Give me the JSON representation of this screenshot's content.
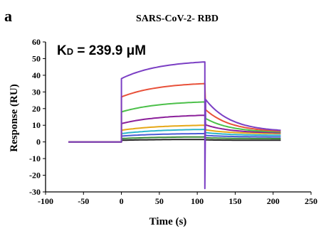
{
  "chart_data": {
    "type": "line",
    "panel_label": "a",
    "title": "SARS-CoV-2- RBD",
    "annotation": {
      "prefix": "K",
      "subscript": "D",
      "text": " =  239.9 μM"
    },
    "xlabel": "Time (s)",
    "ylabel": "Response (RU)",
    "xlim": [
      -100,
      250
    ],
    "ylim": [
      -30,
      60
    ],
    "x_ticks": [
      -100,
      -50,
      0,
      50,
      100,
      150,
      200,
      250
    ],
    "y_ticks": [
      -30,
      -20,
      -10,
      0,
      10,
      20,
      30,
      40,
      50,
      60
    ],
    "grid": false,
    "legend": "none",
    "baseline_start": -70,
    "injection_start": 0,
    "injection_end": 110,
    "run_end": 210,
    "injection_spike": -28,
    "series": [
      {
        "color": "#7B3FC4",
        "jump": 38,
        "end_association": 48,
        "end_dissociation": 7
      },
      {
        "color": "#E8513A",
        "jump": 27,
        "end_association": 35,
        "end_dissociation": 6.5
      },
      {
        "color": "#4CC04A",
        "jump": 18,
        "end_association": 24,
        "end_dissociation": 6
      },
      {
        "color": "#8B1F9A",
        "jump": 11,
        "end_association": 16,
        "end_dissociation": 5.5
      },
      {
        "color": "#E6A817",
        "jump": 7,
        "end_association": 10,
        "end_dissociation": 5
      },
      {
        "color": "#2BB5C9",
        "jump": 5,
        "end_association": 7.5,
        "end_dissociation": 4
      },
      {
        "color": "#4A5BD6",
        "jump": 3.5,
        "end_association": 5,
        "end_dissociation": 3
      },
      {
        "color": "#3A8A3A",
        "jump": 2,
        "end_association": 3,
        "end_dissociation": 2
      },
      {
        "color": "#222222",
        "jump": 1,
        "end_association": 1.5,
        "end_dissociation": 1
      }
    ]
  }
}
